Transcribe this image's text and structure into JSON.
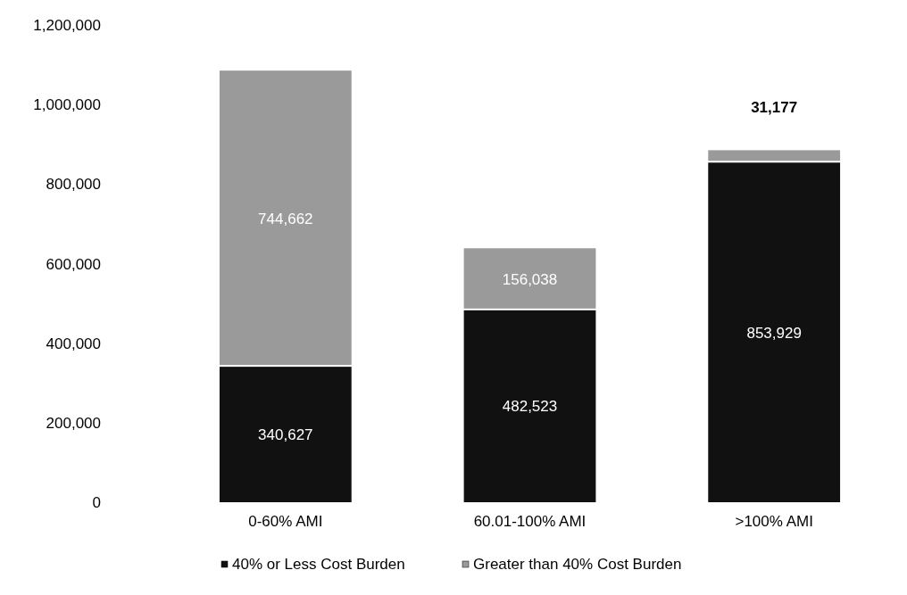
{
  "chart_data": {
    "type": "bar",
    "stacked": true,
    "categories": [
      "0-60% AMI",
      "60.01-100% AMI",
      ">100% AMI"
    ],
    "series": [
      {
        "name": "40% or Less Cost Burden",
        "color": "#111111",
        "values": [
          340627,
          482523,
          853929
        ],
        "value_labels": [
          "340,627",
          "482,523",
          "853,929"
        ]
      },
      {
        "name": "Greater than 40% Cost Burden",
        "color": "#9a9a9a",
        "values": [
          744662,
          156038,
          31177
        ],
        "value_labels": [
          "744,662",
          "156,038",
          "31,177"
        ]
      }
    ],
    "ylim": [
      0,
      1200000
    ],
    "yticks": [
      {
        "value": 0,
        "label": "0"
      },
      {
        "value": 200000,
        "label": "200,000"
      },
      {
        "value": 400000,
        "label": "400,000"
      },
      {
        "value": 600000,
        "label": "600,000"
      },
      {
        "value": 800000,
        "label": "800,000"
      },
      {
        "value": 1000000,
        "label": "1,000,000"
      },
      {
        "value": 1200000,
        "label": "1,200,000"
      }
    ],
    "grid": false,
    "legend": "bottom"
  }
}
